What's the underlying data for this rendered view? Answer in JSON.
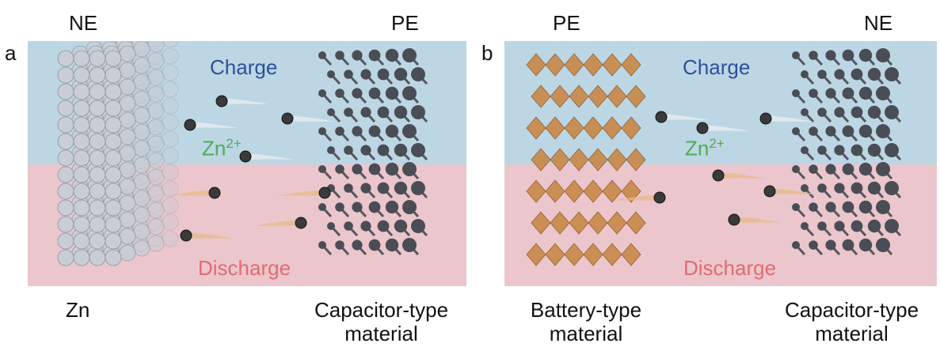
{
  "panels": [
    {
      "letter": "a",
      "left_electrode": "NE",
      "right_electrode": "PE",
      "charge": "Charge",
      "discharge": "Discharge",
      "ion": "Zn",
      "ion_charge": "2+",
      "left_material": "Zn",
      "right_material_line1": "Capacitor-type",
      "right_material_line2": "material"
    },
    {
      "letter": "b",
      "left_electrode": "PE",
      "right_electrode": "NE",
      "charge": "Charge",
      "discharge": "Discharge",
      "ion": "Zn",
      "ion_charge": "2+",
      "left_material_line1": "Battery-type",
      "left_material_line2": "material",
      "right_material_line1": "Capacitor-type",
      "right_material_line2": "material"
    }
  ],
  "colors": {
    "charge_band": "#bcd6e4",
    "discharge_band": "#ebc6cc",
    "charge_text": "#2e4f9a",
    "discharge_text": "#e46a72",
    "ion_text": "#4caf50",
    "zinc_sphere": "#c9ced6",
    "carbon_sphere": "#4a4d55",
    "octahedron": "#c98a4a"
  }
}
